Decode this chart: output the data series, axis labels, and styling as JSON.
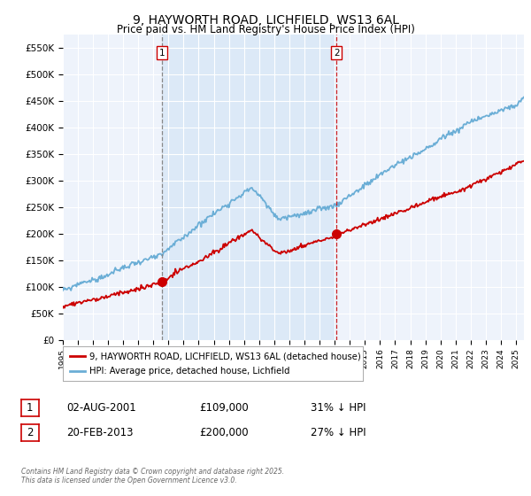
{
  "title_line1": "9, HAYWORTH ROAD, LICHFIELD, WS13 6AL",
  "title_line2": "Price paid vs. HM Land Registry's House Price Index (HPI)",
  "xlim_start": 1995.0,
  "xlim_end": 2025.5,
  "ylim_min": 0,
  "ylim_max": 575000,
  "yticks": [
    0,
    50000,
    100000,
    150000,
    200000,
    250000,
    300000,
    350000,
    400000,
    450000,
    500000,
    550000
  ],
  "ytick_labels": [
    "£0",
    "£50K",
    "£100K",
    "£150K",
    "£200K",
    "£250K",
    "£300K",
    "£350K",
    "£400K",
    "£450K",
    "£500K",
    "£550K"
  ],
  "hpi_color": "#6baed6",
  "price_color": "#cc0000",
  "shade_color": "#dce9f7",
  "sale1_x": 2001.583,
  "sale1_y": 109000,
  "sale2_x": 2013.12,
  "sale2_y": 200000,
  "legend_line1": "9, HAYWORTH ROAD, LICHFIELD, WS13 6AL (detached house)",
  "legend_line2": "HPI: Average price, detached house, Lichfield",
  "footer": "Contains HM Land Registry data © Crown copyright and database right 2025.\nThis data is licensed under the Open Government Licence v3.0.",
  "background_color": "#ffffff",
  "plot_bg_color": "#eef3fb"
}
